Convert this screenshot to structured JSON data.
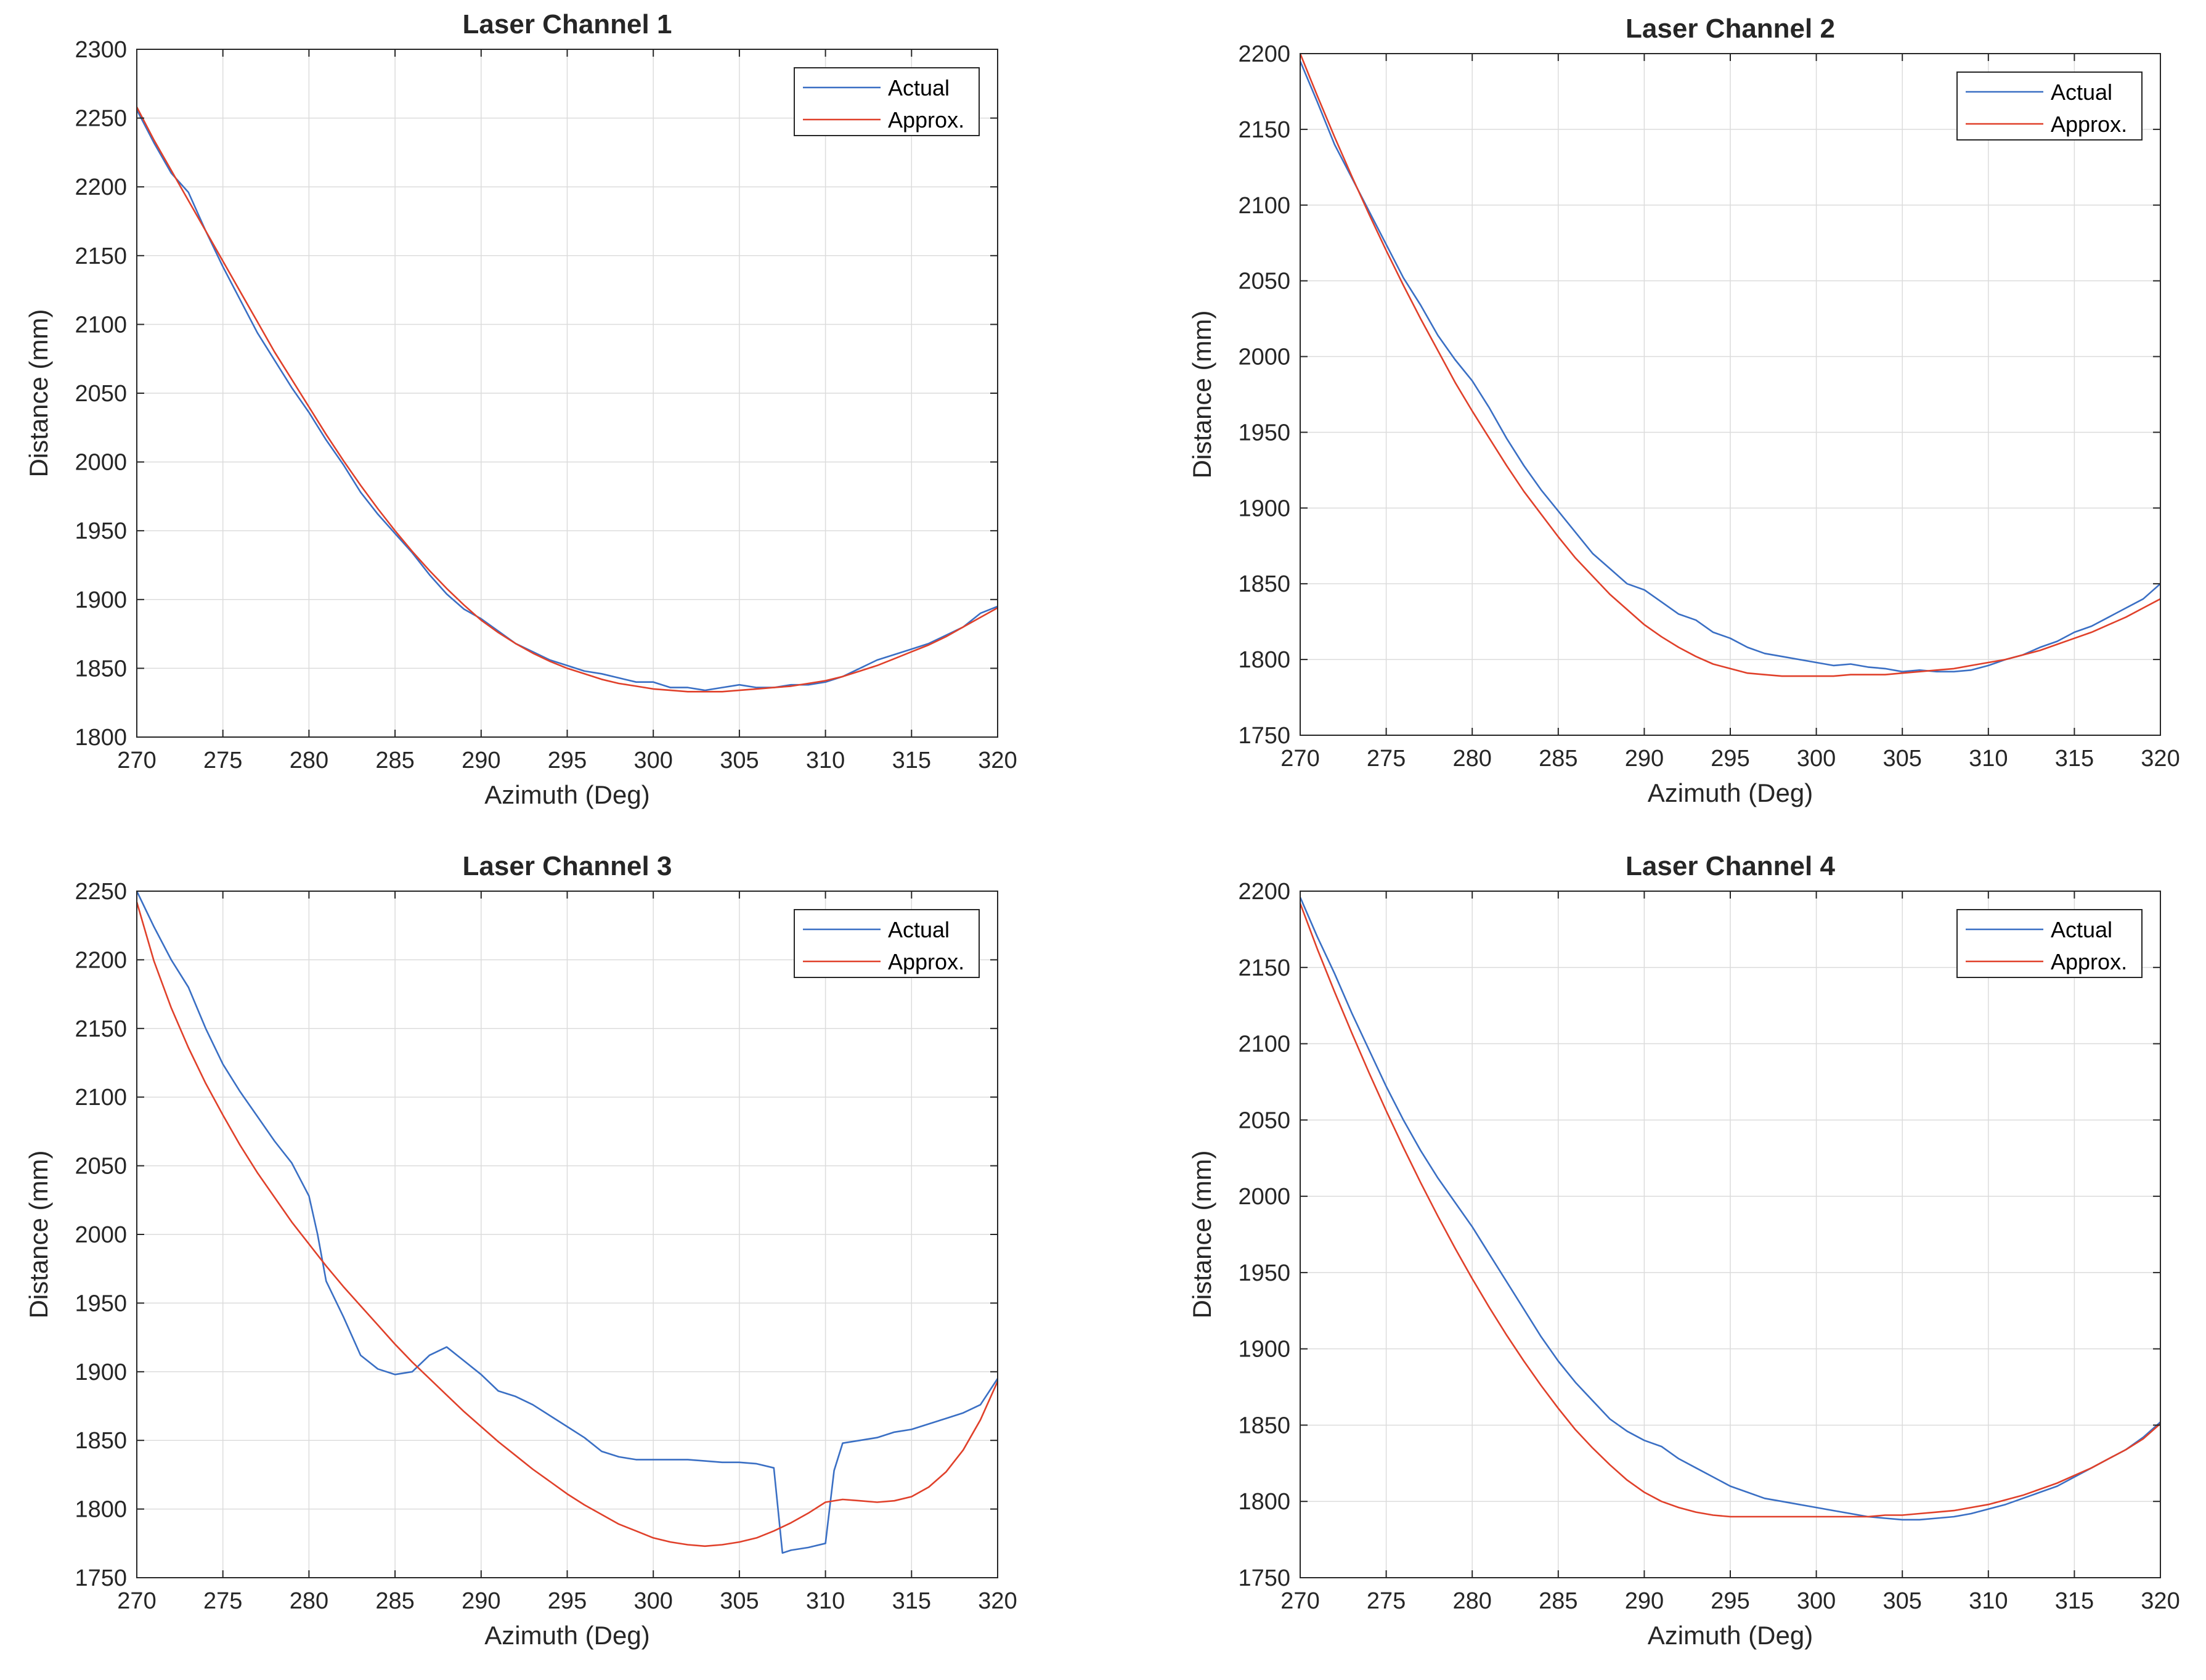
{
  "figure": {
    "series_names": [
      "Actual",
      "Approx."
    ],
    "colors": {
      "actual": "#3a6fc4",
      "approx": "#e0402a",
      "grid": "#dcdcdc",
      "axes": "#262626"
    }
  },
  "chart_data": [
    {
      "type": "line",
      "title": "Laser Channel 1",
      "xlabel": "Azimuth (Deg)",
      "ylabel": "Distance (mm)",
      "xlim": [
        270,
        320
      ],
      "ylim": [
        1800,
        2300
      ],
      "xticks": [
        270,
        275,
        280,
        285,
        290,
        295,
        300,
        305,
        310,
        315,
        320
      ],
      "yticks": [
        1800,
        1850,
        1900,
        1950,
        2000,
        2050,
        2100,
        2150,
        2200,
        2250,
        2300
      ],
      "legend": "top-right",
      "grid": true,
      "series": [
        {
          "name": "Actual",
          "color": "#3a6fc4",
          "x": [
            270,
            271,
            272,
            273,
            274,
            275,
            276,
            277,
            278,
            279,
            280,
            281,
            282,
            283,
            284,
            285,
            286,
            287,
            288,
            289,
            290,
            291,
            292,
            293,
            294,
            295,
            296,
            297,
            298,
            299,
            300,
            301,
            302,
            303,
            304,
            305,
            306,
            307,
            308,
            309,
            310,
            311,
            312,
            313,
            314,
            315,
            316,
            317,
            318,
            319,
            320
          ],
          "values": [
            2256,
            2232,
            2210,
            2196,
            2168,
            2142,
            2118,
            2094,
            2074,
            2054,
            2036,
            2016,
            1998,
            1978,
            1962,
            1948,
            1934,
            1918,
            1904,
            1893,
            1886,
            1877,
            1868,
            1862,
            1856,
            1852,
            1848,
            1846,
            1843,
            1840,
            1840,
            1836,
            1836,
            1834,
            1836,
            1838,
            1836,
            1836,
            1838,
            1838,
            1840,
            1844,
            1850,
            1856,
            1860,
            1864,
            1868,
            1874,
            1880,
            1890,
            1895
          ]
        },
        {
          "name": "Approx.",
          "color": "#e0402a",
          "x": [
            270,
            271,
            272,
            273,
            274,
            275,
            276,
            277,
            278,
            279,
            280,
            281,
            282,
            283,
            284,
            285,
            286,
            287,
            288,
            289,
            290,
            291,
            292,
            293,
            294,
            295,
            296,
            297,
            298,
            299,
            300,
            301,
            302,
            303,
            304,
            305,
            306,
            307,
            308,
            309,
            310,
            311,
            312,
            313,
            314,
            315,
            316,
            317,
            318,
            319,
            320
          ],
          "values": [
            2258,
            2234,
            2212,
            2190,
            2168,
            2146,
            2124,
            2102,
            2080,
            2060,
            2040,
            2020,
            2001,
            1983,
            1966,
            1950,
            1935,
            1921,
            1908,
            1896,
            1885,
            1876,
            1868,
            1861,
            1855,
            1850,
            1846,
            1842,
            1839,
            1837,
            1835,
            1834,
            1833,
            1833,
            1833,
            1834,
            1835,
            1836,
            1837,
            1839,
            1841,
            1844,
            1848,
            1852,
            1857,
            1862,
            1867,
            1873,
            1880,
            1887,
            1894
          ]
        }
      ]
    },
    {
      "type": "line",
      "title": "Laser Channel 2",
      "xlabel": "Azimuth (Deg)",
      "ylabel": "Distance (mm)",
      "xlim": [
        270,
        320
      ],
      "ylim": [
        1750,
        2200
      ],
      "xticks": [
        270,
        275,
        280,
        285,
        290,
        295,
        300,
        305,
        310,
        315,
        320
      ],
      "yticks": [
        1750,
        1800,
        1850,
        1900,
        1950,
        2000,
        2050,
        2100,
        2150,
        2200
      ],
      "legend": "top-right",
      "grid": true,
      "series": [
        {
          "name": "Actual",
          "color": "#3a6fc4",
          "x": [
            270,
            271,
            272,
            273,
            274,
            275,
            276,
            277,
            278,
            279,
            280,
            281,
            282,
            283,
            284,
            285,
            286,
            287,
            288,
            289,
            290,
            291,
            292,
            293,
            294,
            295,
            296,
            297,
            298,
            299,
            300,
            301,
            302,
            303,
            304,
            305,
            306,
            307,
            308,
            309,
            310,
            311,
            312,
            313,
            314,
            315,
            316,
            317,
            318,
            319,
            320
          ],
          "values": [
            2195,
            2168,
            2140,
            2118,
            2096,
            2074,
            2052,
            2034,
            2014,
            1998,
            1984,
            1966,
            1946,
            1928,
            1912,
            1898,
            1884,
            1870,
            1860,
            1850,
            1846,
            1838,
            1830,
            1826,
            1818,
            1814,
            1808,
            1804,
            1802,
            1800,
            1798,
            1796,
            1797,
            1795,
            1794,
            1792,
            1793,
            1792,
            1792,
            1793,
            1796,
            1800,
            1803,
            1808,
            1812,
            1818,
            1822,
            1828,
            1834,
            1840,
            1850
          ]
        },
        {
          "name": "Approx.",
          "color": "#e0402a",
          "x": [
            270,
            271,
            272,
            273,
            274,
            275,
            276,
            277,
            278,
            279,
            280,
            281,
            282,
            283,
            284,
            285,
            286,
            287,
            288,
            289,
            290,
            291,
            292,
            293,
            294,
            295,
            296,
            297,
            298,
            299,
            300,
            301,
            302,
            303,
            304,
            305,
            306,
            307,
            308,
            309,
            310,
            311,
            312,
            313,
            314,
            315,
            316,
            317,
            318,
            319,
            320
          ],
          "values": [
            2200,
            2172,
            2145,
            2119,
            2094,
            2070,
            2047,
            2025,
            2004,
            1983,
            1964,
            1946,
            1928,
            1911,
            1896,
            1881,
            1867,
            1855,
            1843,
            1833,
            1823,
            1815,
            1808,
            1802,
            1797,
            1794,
            1791,
            1790,
            1789,
            1789,
            1789,
            1789,
            1790,
            1790,
            1790,
            1791,
            1792,
            1793,
            1794,
            1796,
            1798,
            1800,
            1803,
            1806,
            1810,
            1814,
            1818,
            1823,
            1828,
            1834,
            1840
          ]
        }
      ]
    },
    {
      "type": "line",
      "title": "Laser Channel 3",
      "xlabel": "Azimuth (Deg)",
      "ylabel": "Distance (mm)",
      "xlim": [
        270,
        320
      ],
      "ylim": [
        1750,
        2250
      ],
      "xticks": [
        270,
        275,
        280,
        285,
        290,
        295,
        300,
        305,
        310,
        315,
        320
      ],
      "yticks": [
        1750,
        1800,
        1850,
        1900,
        1950,
        2000,
        2050,
        2100,
        2150,
        2200,
        2250
      ],
      "legend": "top-right",
      "grid": true,
      "series": [
        {
          "name": "Actual",
          "color": "#3a6fc4",
          "x": [
            270,
            271,
            272,
            273,
            274,
            275,
            276,
            277,
            278,
            279,
            280,
            280.5,
            281,
            282,
            283,
            284,
            285,
            286,
            287,
            288,
            289,
            290,
            291,
            292,
            293,
            294,
            295,
            296,
            297,
            298,
            299,
            300,
            301,
            302,
            303,
            304,
            305,
            306,
            307,
            307.5,
            308,
            309,
            310,
            310.5,
            311,
            312,
            313,
            314,
            315,
            316,
            317,
            318,
            319,
            320
          ],
          "values": [
            2250,
            2224,
            2200,
            2180,
            2150,
            2124,
            2104,
            2086,
            2068,
            2052,
            2028,
            2000,
            1966,
            1940,
            1912,
            1902,
            1898,
            1900,
            1912,
            1918,
            1908,
            1898,
            1886,
            1882,
            1876,
            1868,
            1860,
            1852,
            1842,
            1838,
            1836,
            1836,
            1836,
            1836,
            1835,
            1834,
            1834,
            1833,
            1830,
            1768,
            1770,
            1772,
            1775,
            1828,
            1848,
            1850,
            1852,
            1856,
            1858,
            1862,
            1866,
            1870,
            1876,
            1895
          ]
        },
        {
          "name": "Approx.",
          "color": "#e0402a",
          "x": [
            270,
            271,
            272,
            273,
            274,
            275,
            276,
            277,
            278,
            279,
            280,
            281,
            282,
            283,
            284,
            285,
            286,
            287,
            288,
            289,
            290,
            291,
            292,
            293,
            294,
            295,
            296,
            297,
            298,
            299,
            300,
            301,
            302,
            303,
            304,
            305,
            306,
            307,
            308,
            309,
            310,
            311,
            312,
            313,
            314,
            315,
            316,
            317,
            318,
            319,
            320
          ],
          "values": [
            2242,
            2199,
            2165,
            2136,
            2110,
            2087,
            2065,
            2045,
            2027,
            2009,
            1993,
            1977,
            1962,
            1948,
            1934,
            1920,
            1907,
            1895,
            1883,
            1871,
            1860,
            1849,
            1839,
            1829,
            1820,
            1811,
            1803,
            1796,
            1789,
            1784,
            1779,
            1776,
            1774,
            1773,
            1774,
            1776,
            1779,
            1784,
            1790,
            1797,
            1805,
            1807,
            1806,
            1805,
            1806,
            1809,
            1816,
            1827,
            1843,
            1865,
            1893
          ]
        }
      ]
    },
    {
      "type": "line",
      "title": "Laser Channel 4",
      "xlabel": "Azimuth (Deg)",
      "ylabel": "Distance (mm)",
      "xlim": [
        270,
        320
      ],
      "ylim": [
        1750,
        2200
      ],
      "xticks": [
        270,
        275,
        280,
        285,
        290,
        295,
        300,
        305,
        310,
        315,
        320
      ],
      "yticks": [
        1750,
        1800,
        1850,
        1900,
        1950,
        2000,
        2050,
        2100,
        2150,
        2200
      ],
      "legend": "top-right",
      "grid": true,
      "series": [
        {
          "name": "Actual",
          "color": "#3a6fc4",
          "x": [
            270,
            271,
            272,
            273,
            274,
            275,
            276,
            277,
            278,
            279,
            280,
            281,
            282,
            283,
            284,
            285,
            286,
            287,
            288,
            289,
            290,
            291,
            292,
            293,
            294,
            295,
            296,
            297,
            298,
            299,
            300,
            301,
            302,
            303,
            304,
            305,
            306,
            307,
            308,
            309,
            310,
            311,
            312,
            313,
            314,
            315,
            316,
            317,
            318,
            319,
            320
          ],
          "values": [
            2196,
            2170,
            2146,
            2120,
            2096,
            2072,
            2050,
            2030,
            2012,
            1996,
            1980,
            1962,
            1944,
            1926,
            1908,
            1892,
            1878,
            1866,
            1854,
            1846,
            1840,
            1836,
            1828,
            1822,
            1816,
            1810,
            1806,
            1802,
            1800,
            1798,
            1796,
            1794,
            1792,
            1790,
            1789,
            1788,
            1788,
            1789,
            1790,
            1792,
            1795,
            1798,
            1802,
            1806,
            1810,
            1816,
            1822,
            1828,
            1834,
            1842,
            1852
          ]
        },
        {
          "name": "Approx.",
          "color": "#e0402a",
          "x": [
            270,
            271,
            272,
            273,
            274,
            275,
            276,
            277,
            278,
            279,
            280,
            281,
            282,
            283,
            284,
            285,
            286,
            287,
            288,
            289,
            290,
            291,
            292,
            293,
            294,
            295,
            296,
            297,
            298,
            299,
            300,
            301,
            302,
            303,
            304,
            305,
            306,
            307,
            308,
            309,
            310,
            311,
            312,
            313,
            314,
            315,
            316,
            317,
            318,
            319,
            320
          ],
          "values": [
            2192,
            2162,
            2134,
            2107,
            2081,
            2056,
            2032,
            2009,
            1987,
            1966,
            1946,
            1927,
            1909,
            1892,
            1876,
            1861,
            1847,
            1835,
            1824,
            1814,
            1806,
            1800,
            1796,
            1793,
            1791,
            1790,
            1790,
            1790,
            1790,
            1790,
            1790,
            1790,
            1790,
            1790,
            1791,
            1791,
            1792,
            1793,
            1794,
            1796,
            1798,
            1801,
            1804,
            1808,
            1812,
            1817,
            1822,
            1828,
            1834,
            1841,
            1851
          ]
        }
      ]
    }
  ]
}
